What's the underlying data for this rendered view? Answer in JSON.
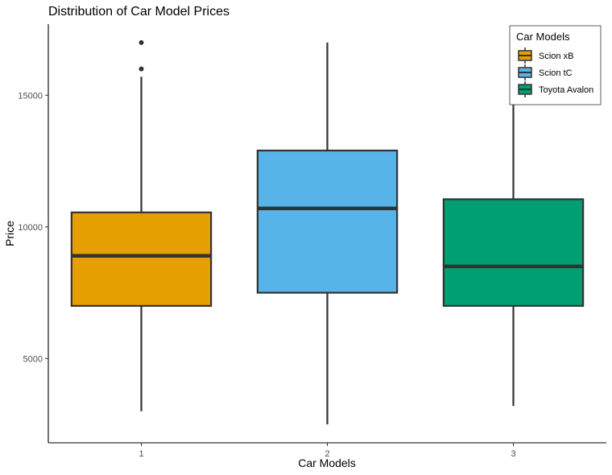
{
  "chart_data": {
    "type": "boxplot",
    "title": "Distribution of Car Model Prices",
    "xlabel": "Car Models",
    "ylabel": "Price",
    "categories": [
      "1",
      "2",
      "3"
    ],
    "ylim": [
      1800,
      17700
    ],
    "yticks": [
      5000,
      10000,
      15000
    ],
    "grid": false,
    "legend": {
      "title": "Car Models",
      "placement": "top-right",
      "entries": [
        "Scion xB",
        "Scion tC",
        "Toyota Avalon"
      ]
    },
    "series": [
      {
        "name": "Scion xB",
        "color": "#E69F00",
        "min": 3000,
        "q1": 7000,
        "median": 8900,
        "q3": 10550,
        "max": 15700,
        "outliers": [
          16000,
          17000
        ]
      },
      {
        "name": "Scion tC",
        "color": "#56B4E9",
        "min": 2500,
        "q1": 7500,
        "median": 10700,
        "q3": 12900,
        "max": 17000,
        "outliers": []
      },
      {
        "name": "Toyota Avalon",
        "color": "#009E73",
        "min": 3200,
        "q1": 7000,
        "median": 8500,
        "q3": 11050,
        "max": 15600,
        "outliers": []
      }
    ]
  }
}
